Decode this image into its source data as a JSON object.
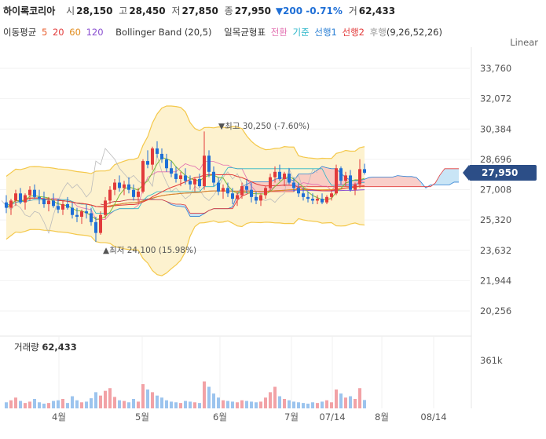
{
  "header": {
    "stock_name": "하이록코리아",
    "open_label": "시",
    "open": "28,150",
    "high_label": "고",
    "high": "28,450",
    "low_label": "저",
    "low": "27,850",
    "close_label": "종",
    "close": "27,950",
    "change": "▼200 -0.71%",
    "volume_label": "거",
    "volume": "62,433"
  },
  "indicators": {
    "ma_label": "이동평균",
    "ma": [
      {
        "period": "5",
        "color": "#e85b2a"
      },
      {
        "period": "20",
        "color": "#e23b3b"
      },
      {
        "period": "60",
        "color": "#e08a1a"
      },
      {
        "period": "120",
        "color": "#8a4fd0"
      }
    ],
    "bollinger": "Bollinger Band (20,5)",
    "ichimoku_label": "일목균형표",
    "ichimoku": [
      {
        "name": "전환",
        "color": "#e26fb0"
      },
      {
        "name": "기준",
        "color": "#28b5c8"
      },
      {
        "name": "선행1",
        "color": "#2a7fd4"
      },
      {
        "name": "선행2",
        "color": "#e23b3b"
      },
      {
        "name": "후행",
        "color": "#999999"
      }
    ],
    "ichimoku_params": "(9,26,52,26)"
  },
  "scale_label": "Linear",
  "volume_title": "거래량",
  "volume_value": "62,433",
  "current_price_tag": "27,950",
  "colors": {
    "up": "#e23b3b",
    "down": "#1f6fd6",
    "band_fill": "#fdf2cf",
    "band_line": "#f4c84a"
  },
  "chart_data": {
    "type": "candlestick",
    "y_ticks": [
      "33,760",
      "32,072",
      "30,384",
      "28,696",
      "27,008",
      "25,320",
      "23,632",
      "21,944",
      "20,256"
    ],
    "y_tick_values": [
      33760,
      32072,
      30384,
      28696,
      27008,
      25320,
      23632,
      21944,
      20256
    ],
    "x_ticks": [
      "4월",
      "5월",
      "6월",
      "7월",
      "07/14",
      "8월",
      "08/14"
    ],
    "high_annotation": "▼최고 30,250 (-7.60%)",
    "low_annotation": "▲최저 24,100 (15.98%)",
    "volume_tick": "361k",
    "ohlc": [
      [
        26300,
        26700,
        25700,
        26000
      ],
      [
        26000,
        26500,
        25600,
        26400
      ],
      [
        26400,
        27000,
        26100,
        26800
      ],
      [
        26800,
        27100,
        26200,
        26300
      ],
      [
        26300,
        26800,
        25900,
        26700
      ],
      [
        26700,
        27200,
        26400,
        27000
      ],
      [
        27000,
        27300,
        26500,
        26600
      ],
      [
        26600,
        27000,
        26200,
        26500
      ],
      [
        26500,
        26900,
        26000,
        26200
      ],
      [
        26200,
        26600,
        25800,
        26400
      ],
      [
        26400,
        26800,
        26000,
        26100
      ],
      [
        26100,
        26500,
        25700,
        25900
      ],
      [
        25900,
        26400,
        25600,
        26200
      ],
      [
        26200,
        26600,
        25900,
        26000
      ],
      [
        26000,
        26300,
        25400,
        25600
      ],
      [
        25600,
        26000,
        25200,
        25500
      ],
      [
        25500,
        25900,
        25100,
        25800
      ],
      [
        25800,
        26200,
        25400,
        25700
      ],
      [
        25700,
        26000,
        25000,
        25200
      ],
      [
        25200,
        25500,
        24100,
        24600
      ],
      [
        24600,
        25800,
        24500,
        25600
      ],
      [
        25600,
        26600,
        25400,
        26400
      ],
      [
        26400,
        27200,
        26200,
        27000
      ],
      [
        27000,
        27600,
        26700,
        27400
      ],
      [
        27400,
        27800,
        26900,
        27100
      ],
      [
        27100,
        27500,
        26700,
        27300
      ],
      [
        27300,
        27700,
        26800,
        27000
      ],
      [
        27000,
        27300,
        26400,
        26600
      ],
      [
        26600,
        27100,
        26300,
        26900
      ],
      [
        26900,
        28700,
        26800,
        28600
      ],
      [
        28600,
        29200,
        28200,
        28400
      ],
      [
        28400,
        29400,
        28100,
        29300
      ],
      [
        29300,
        29700,
        28800,
        29000
      ],
      [
        29000,
        29300,
        28500,
        28700
      ],
      [
        28700,
        29000,
        28000,
        28200
      ],
      [
        28200,
        28600,
        27700,
        27900
      ],
      [
        27900,
        28300,
        27400,
        27600
      ],
      [
        27600,
        28000,
        27200,
        27800
      ],
      [
        27800,
        28200,
        27300,
        27500
      ],
      [
        27500,
        27800,
        27000,
        27300
      ],
      [
        27300,
        27700,
        26900,
        27600
      ],
      [
        27600,
        27900,
        27100,
        27200
      ],
      [
        27200,
        30250,
        27000,
        28900
      ],
      [
        28900,
        29200,
        27700,
        28000
      ],
      [
        28000,
        28300,
        27200,
        27400
      ],
      [
        27400,
        27700,
        26700,
        26900
      ],
      [
        26900,
        27300,
        26500,
        27100
      ],
      [
        27100,
        27400,
        26600,
        26800
      ],
      [
        26800,
        27100,
        26200,
        26500
      ],
      [
        26500,
        26900,
        26100,
        26700
      ],
      [
        26700,
        27400,
        26500,
        27200
      ],
      [
        27200,
        27600,
        26800,
        27000
      ],
      [
        27000,
        27400,
        26300,
        26600
      ],
      [
        26600,
        26900,
        26200,
        26400
      ],
      [
        26400,
        26800,
        26100,
        26700
      ],
      [
        26700,
        27200,
        26500,
        27100
      ],
      [
        27100,
        27900,
        26900,
        27700
      ],
      [
        27700,
        28300,
        27400,
        28000
      ],
      [
        28000,
        28400,
        27500,
        27600
      ],
      [
        27600,
        28000,
        27200,
        27900
      ],
      [
        27900,
        28200,
        27300,
        27400
      ],
      [
        27400,
        27700,
        26900,
        27100
      ],
      [
        27100,
        27400,
        26600,
        26800
      ],
      [
        26800,
        27100,
        26400,
        26600
      ],
      [
        26600,
        26900,
        26300,
        26500
      ],
      [
        26500,
        26800,
        26200,
        26400
      ],
      [
        26400,
        26700,
        26200,
        26500
      ],
      [
        26500,
        26800,
        26200,
        26300
      ],
      [
        26300,
        26700,
        26200,
        26600
      ],
      [
        26600,
        27000,
        26400,
        26800
      ],
      [
        26800,
        28400,
        26700,
        28200
      ],
      [
        28200,
        28300,
        27300,
        27500
      ],
      [
        27500,
        28000,
        27200,
        27800
      ],
      [
        27800,
        28100,
        26900,
        27000
      ],
      [
        27000,
        27400,
        26700,
        27300
      ],
      [
        27300,
        28700,
        27100,
        28150
      ],
      [
        28150,
        28450,
        27850,
        27950
      ]
    ],
    "volumes": [
      45,
      60,
      80,
      55,
      40,
      50,
      70,
      45,
      35,
      40,
      55,
      60,
      70,
      40,
      90,
      60,
      45,
      50,
      75,
      120,
      95,
      130,
      150,
      85,
      60,
      55,
      45,
      70,
      50,
      180,
      140,
      120,
      95,
      80,
      60,
      50,
      45,
      40,
      55,
      50,
      45,
      40,
      200,
      160,
      110,
      80,
      60,
      55,
      50,
      45,
      60,
      55,
      50,
      45,
      50,
      80,
      120,
      160,
      90,
      70,
      60,
      50,
      45,
      40,
      35,
      45,
      40,
      50,
      60,
      45,
      140,
      110,
      80,
      90,
      70,
      150,
      62
    ]
  }
}
